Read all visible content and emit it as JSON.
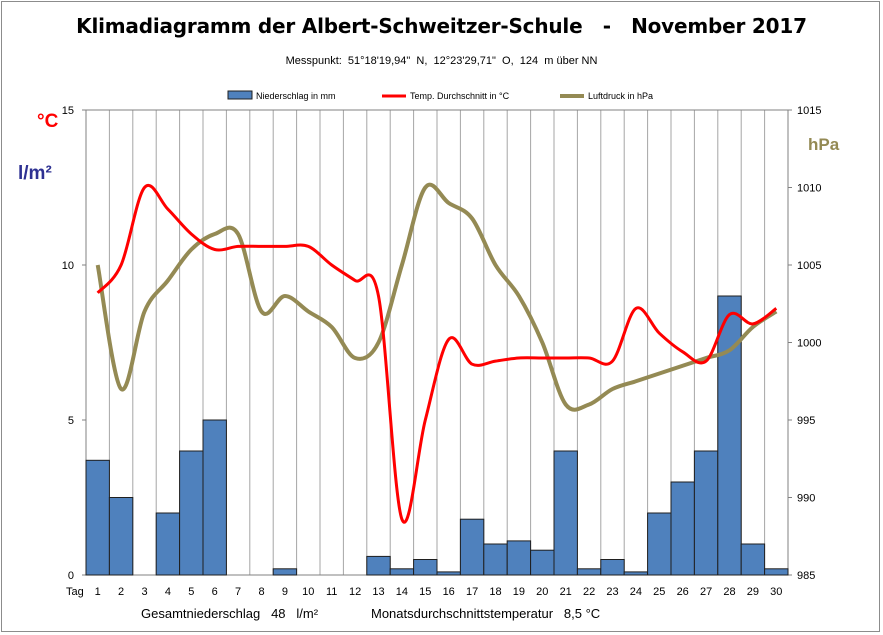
{
  "title": "Klimadiagramm der Albert-Schweitzer-Schule   -   November 2017",
  "subtitle": "Messpunkt:  51°18'19,94\"  N,  12°23'29,71\"  O,  124  m über NN",
  "left_unit_temp": "°C",
  "left_unit_rain": "l/m²",
  "right_unit": "hPa",
  "x_axis_label": "Tag",
  "footer_rain": "Gesamtniederschlag   48   l/m²",
  "footer_temp": "Monatsdurchschnittstemperatur   8,5 °C",
  "colors": {
    "bars": "#4f81bd",
    "bar_border": "#1f1f1f",
    "temp": "#ff0000",
    "pressure": "#948a54",
    "left_unit_temp": "#ff0000",
    "left_unit_rain": "#2e3192",
    "right_unit": "#948a54",
    "grid": "#a6a6a6"
  },
  "chart_data": {
    "type": "bar+line",
    "title": "Klimadiagramm der Albert-Schweitzer-Schule   -   November 2017",
    "categories": [
      1,
      2,
      3,
      4,
      5,
      6,
      7,
      8,
      9,
      10,
      11,
      12,
      13,
      14,
      15,
      16,
      17,
      18,
      19,
      20,
      21,
      22,
      23,
      24,
      25,
      26,
      27,
      28,
      29,
      30
    ],
    "left_axis": {
      "ylim": [
        0,
        15
      ],
      "ticks": [
        0,
        5,
        10,
        15
      ]
    },
    "right_axis": {
      "ylim": [
        985,
        1015
      ],
      "ticks": [
        985,
        990,
        995,
        1000,
        1005,
        1010,
        1015
      ]
    },
    "legend_position": "top",
    "grid": "vertical",
    "series": [
      {
        "name": "Niederschlag in mm",
        "type": "bar",
        "axis": "left",
        "values": [
          3.7,
          2.5,
          0,
          2.0,
          4.0,
          5.0,
          0,
          0,
          0.2,
          0,
          0,
          0,
          0.6,
          0.2,
          0.5,
          0.1,
          1.8,
          1.0,
          1.1,
          0.8,
          4.0,
          0.2,
          0.5,
          0.1,
          2.0,
          3.0,
          4.0,
          9.0,
          1.0,
          0.2
        ]
      },
      {
        "name": "Temp. Durchschnitt in °C",
        "type": "line",
        "axis": "left",
        "values": [
          9.1,
          10.0,
          12.5,
          11.8,
          11.0,
          10.5,
          10.6,
          10.6,
          10.6,
          10.6,
          10.0,
          9.5,
          9.0,
          1.8,
          5.0,
          7.6,
          6.8,
          6.9,
          7.0,
          7.0,
          7.0,
          7.0,
          6.9,
          8.6,
          7.8,
          7.2,
          6.9,
          8.4,
          8.1,
          8.6
        ]
      },
      {
        "name": "Luftdruck in hPa",
        "type": "line",
        "axis": "right",
        "values": [
          1005.0,
          997.0,
          1002.0,
          1004.0,
          1006.0,
          1007.0,
          1007.0,
          1002.0,
          1003.0,
          1002.0,
          1001.0,
          999.0,
          1000.0,
          1005.0,
          1010.0,
          1009.0,
          1008.0,
          1005.0,
          1003.0,
          1000.0,
          996.0,
          996.0,
          997.0,
          997.5,
          998.0,
          998.5,
          999.0,
          999.5,
          1001.0,
          1002.0
        ]
      }
    ]
  }
}
